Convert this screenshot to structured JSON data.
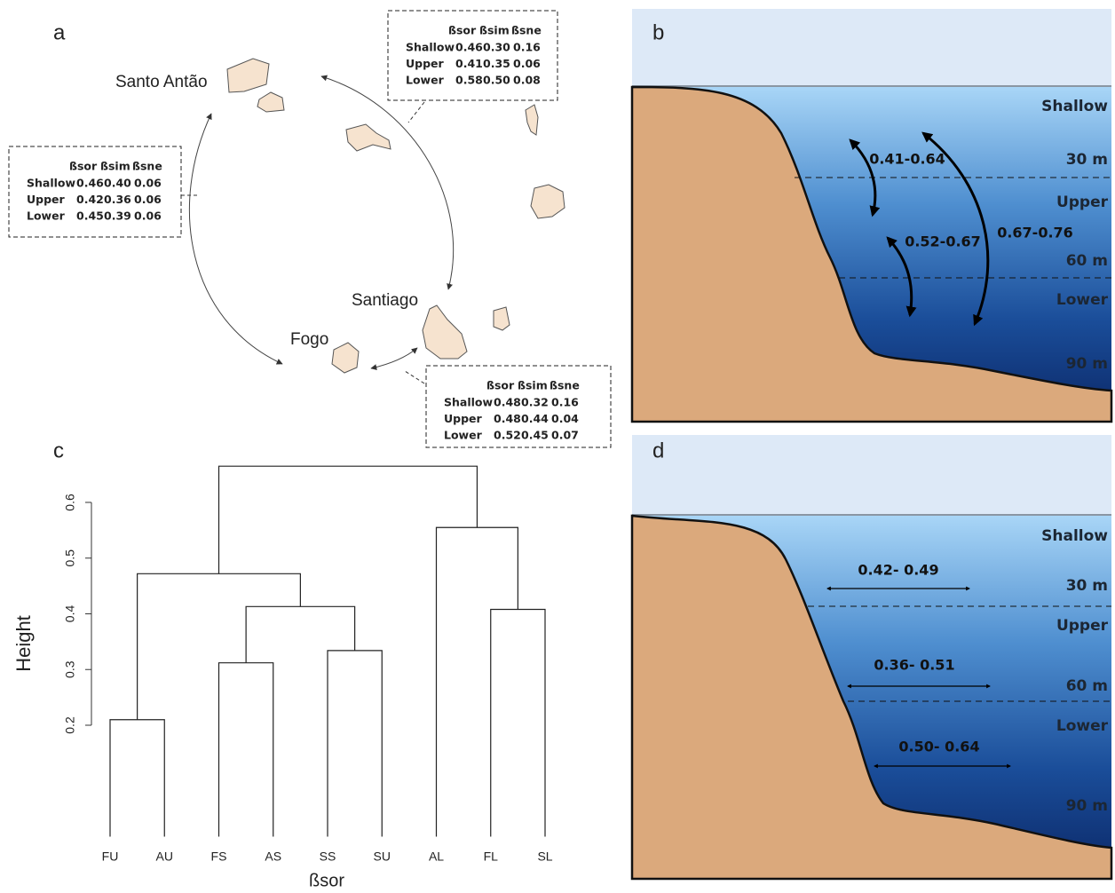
{
  "panels": {
    "a": {
      "label": "a",
      "islands": [
        "Santo Antão",
        "Santiago",
        "Fogo"
      ],
      "colors": [
        "#222222",
        "#b3262c",
        "#3d6bb3"
      ],
      "tables": [
        {
          "header": [
            "ßsor",
            "ßsim",
            "ßsne"
          ],
          "rows": [
            [
              "Shallow",
              "0.46",
              "0.30",
              "0.16"
            ],
            [
              "Upper",
              "0.41",
              "0.35",
              "0.06"
            ],
            [
              "Lower",
              "0.58",
              "0.50",
              "0.08"
            ]
          ]
        },
        {
          "header": [
            "ßsor",
            "ßsim",
            "ßsne"
          ],
          "rows": [
            [
              "Shallow",
              "0.46",
              "0.40",
              "0.06"
            ],
            [
              "Upper",
              "0.42",
              "0.36",
              "0.06"
            ],
            [
              "Lower",
              "0.45",
              "0.39",
              "0.06"
            ]
          ]
        },
        {
          "header": [
            "ßsor",
            "ßsim",
            "ßsne"
          ],
          "rows": [
            [
              "Shallow",
              "0.48",
              "0.32",
              "0.16"
            ],
            [
              "Upper",
              "0.48",
              "0.44",
              "0.04"
            ],
            [
              "Lower",
              "0.52",
              "0.45",
              "0.07"
            ]
          ]
        }
      ]
    },
    "b": {
      "label": "b",
      "zones": [
        "Shallow",
        "Upper",
        "Lower"
      ],
      "depths": [
        "30 m",
        "60 m",
        "90 m"
      ],
      "ranges": [
        "0.41-0.64",
        "0.52-0.67",
        "0.67-0.76"
      ]
    },
    "d": {
      "label": "d",
      "zones": [
        "Shallow",
        "Upper",
        "Lower"
      ],
      "depths": [
        "30 m",
        "60 m",
        "90 m"
      ],
      "ranges": [
        "0.42- 0.49",
        "0.36- 0.51",
        "0.50- 0.64"
      ]
    }
  },
  "chart_data": {
    "type": "dendrogram",
    "label": "c",
    "ylabel": "Height",
    "xlabel": "ßsor",
    "leaves": [
      "FU",
      "AU",
      "FS",
      "AS",
      "SS",
      "SU",
      "AL",
      "FL",
      "SL"
    ],
    "merge": [
      [
        -1,
        -2
      ],
      [
        -3,
        -4
      ],
      [
        -5,
        -6
      ],
      [
        -8,
        -9
      ],
      [
        2,
        3
      ],
      [
        1,
        5
      ],
      [
        -7,
        4
      ],
      [
        6,
        7
      ]
    ],
    "height": [
      0.21,
      0.312,
      0.334,
      0.408,
      0.413,
      0.472,
      0.555,
      0.665
    ],
    "ylim": [
      0,
      0.69
    ],
    "yticks": [
      0.2,
      0.3,
      0.4,
      0.5,
      0.6
    ],
    "color": "#222222"
  }
}
